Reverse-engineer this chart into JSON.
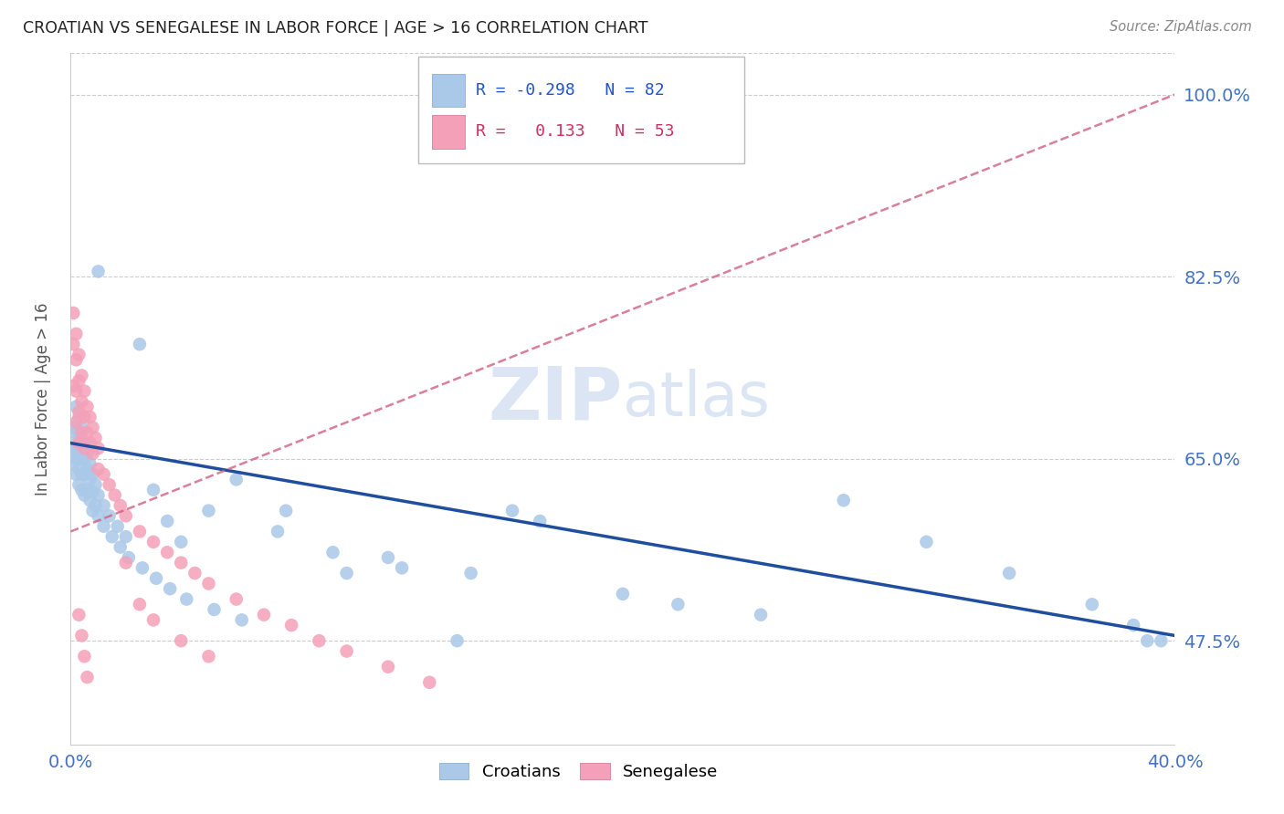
{
  "title": "CROATIAN VS SENEGALESE IN LABOR FORCE | AGE > 16 CORRELATION CHART",
  "source": "Source: ZipAtlas.com",
  "ylabel": "In Labor Force | Age > 16",
  "xlim": [
    0.0,
    0.4
  ],
  "ylim": [
    0.375,
    1.04
  ],
  "yticks": [
    0.475,
    0.65,
    0.825,
    1.0
  ],
  "ytick_labels": [
    "47.5%",
    "65.0%",
    "82.5%",
    "100.0%"
  ],
  "xticks": [
    0.0,
    0.05,
    0.1,
    0.15,
    0.2,
    0.25,
    0.3,
    0.35,
    0.4
  ],
  "bg_color": "#ffffff",
  "grid_color": "#cccccc",
  "title_color": "#222222",
  "tick_color": "#4472c4",
  "croatian_dot_color": "#aac8e8",
  "senegalese_dot_color": "#f4a0b8",
  "croatian_line_color": "#1f4e9e",
  "senegalese_line_color": "#d06080",
  "watermark_zip": "ZIP",
  "watermark_atlas": "atlas",
  "watermark_color": "#d0ddf0",
  "source_text": "Source: ZipAtlas.com",
  "croatian_x": [
    0.001,
    0.001,
    0.001,
    0.001,
    0.002,
    0.002,
    0.002,
    0.002,
    0.002,
    0.003,
    0.003,
    0.003,
    0.003,
    0.003,
    0.003,
    0.004,
    0.004,
    0.004,
    0.004,
    0.004,
    0.005,
    0.005,
    0.005,
    0.005,
    0.006,
    0.006,
    0.006,
    0.007,
    0.007,
    0.007,
    0.008,
    0.008,
    0.008,
    0.009,
    0.009,
    0.01,
    0.01,
    0.01,
    0.012,
    0.012,
    0.014,
    0.015,
    0.017,
    0.018,
    0.02,
    0.021,
    0.025,
    0.026,
    0.03,
    0.031,
    0.035,
    0.036,
    0.04,
    0.042,
    0.05,
    0.052,
    0.06,
    0.062,
    0.075,
    0.078,
    0.095,
    0.1,
    0.115,
    0.12,
    0.14,
    0.145,
    0.16,
    0.17,
    0.2,
    0.22,
    0.25,
    0.28,
    0.31,
    0.34,
    0.37,
    0.385,
    0.39,
    0.395
  ],
  "croatian_y": [
    0.68,
    0.665,
    0.655,
    0.645,
    0.7,
    0.675,
    0.66,
    0.65,
    0.635,
    0.69,
    0.675,
    0.66,
    0.65,
    0.64,
    0.625,
    0.68,
    0.665,
    0.65,
    0.635,
    0.62,
    0.665,
    0.65,
    0.635,
    0.615,
    0.655,
    0.64,
    0.62,
    0.645,
    0.63,
    0.61,
    0.635,
    0.618,
    0.6,
    0.625,
    0.605,
    0.83,
    0.615,
    0.595,
    0.605,
    0.585,
    0.595,
    0.575,
    0.585,
    0.565,
    0.575,
    0.555,
    0.76,
    0.545,
    0.62,
    0.535,
    0.59,
    0.525,
    0.57,
    0.515,
    0.6,
    0.505,
    0.63,
    0.495,
    0.58,
    0.6,
    0.56,
    0.54,
    0.555,
    0.545,
    0.475,
    0.54,
    0.6,
    0.59,
    0.52,
    0.51,
    0.5,
    0.61,
    0.57,
    0.54,
    0.51,
    0.49,
    0.475,
    0.475
  ],
  "senegalese_x": [
    0.001,
    0.001,
    0.001,
    0.002,
    0.002,
    0.002,
    0.002,
    0.003,
    0.003,
    0.003,
    0.003,
    0.004,
    0.004,
    0.004,
    0.005,
    0.005,
    0.005,
    0.006,
    0.006,
    0.007,
    0.007,
    0.008,
    0.008,
    0.009,
    0.01,
    0.01,
    0.012,
    0.014,
    0.016,
    0.018,
    0.02,
    0.025,
    0.03,
    0.035,
    0.04,
    0.045,
    0.05,
    0.06,
    0.07,
    0.08,
    0.09,
    0.1,
    0.115,
    0.13,
    0.02,
    0.025,
    0.03,
    0.04,
    0.05,
    0.003,
    0.004,
    0.005,
    0.006
  ],
  "senegalese_y": [
    0.79,
    0.76,
    0.72,
    0.77,
    0.745,
    0.715,
    0.685,
    0.75,
    0.725,
    0.695,
    0.665,
    0.73,
    0.705,
    0.675,
    0.715,
    0.69,
    0.66,
    0.7,
    0.675,
    0.69,
    0.665,
    0.68,
    0.655,
    0.67,
    0.66,
    0.64,
    0.635,
    0.625,
    0.615,
    0.605,
    0.595,
    0.58,
    0.57,
    0.56,
    0.55,
    0.54,
    0.53,
    0.515,
    0.5,
    0.49,
    0.475,
    0.465,
    0.45,
    0.435,
    0.55,
    0.51,
    0.495,
    0.475,
    0.46,
    0.5,
    0.48,
    0.46,
    0.44
  ],
  "cro_trendline_x": [
    0.0,
    0.4
  ],
  "cro_trendline_y": [
    0.665,
    0.48
  ],
  "sen_trendline_x": [
    0.0,
    0.4
  ],
  "sen_trendline_y": [
    0.58,
    1.0
  ]
}
